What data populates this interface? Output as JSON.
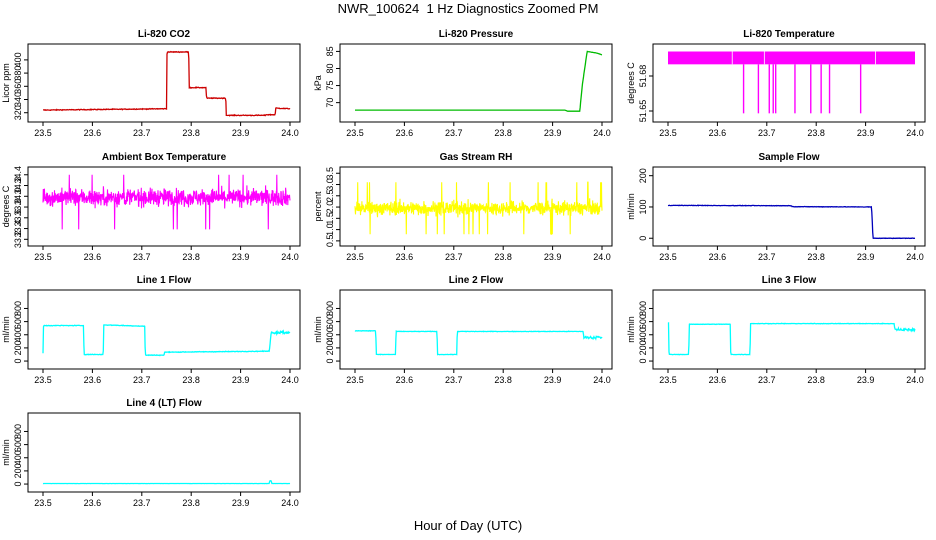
{
  "figure": {
    "title": "NWR_100624  1 Hz Diagnostics Zoomed PM",
    "xlabel": "Hour of Day (UTC)"
  },
  "chart_data": [
    {
      "type": "line",
      "title": "Li-820 CO2",
      "ylabel": "Licor ppm",
      "color": "#cc0000",
      "x_ticks": [
        "23.5",
        "23.6",
        "23.7",
        "23.8",
        "23.9",
        "24.0"
      ],
      "y_ticks": [
        "320",
        "340",
        "360",
        "380",
        "400"
      ],
      "xlim": [
        23.5,
        24.0
      ],
      "ylim": [
        312,
        418
      ],
      "series": [
        {
          "x": [
            23.5,
            23.75,
            23.751,
            23.795,
            23.796,
            23.83,
            23.831,
            23.87,
            23.871,
            23.95,
            23.951,
            23.97,
            23.971,
            24.0
          ],
          "y": [
            324,
            326,
            412,
            412,
            358,
            358,
            342,
            342,
            316,
            316,
            317,
            317,
            327,
            326
          ],
          "noise": 1
        }
      ]
    },
    {
      "type": "line",
      "title": "Li-820 Pressure",
      "ylabel": "kPa",
      "color": "#00bb00",
      "x_ticks": [
        "23.5",
        "23.6",
        "23.7",
        "23.8",
        "23.9",
        "24.0"
      ],
      "y_ticks": [
        "70",
        "75",
        "80",
        "85"
      ],
      "xlim": [
        23.5,
        24.0
      ],
      "ylim": [
        65.5,
        86
      ],
      "series": [
        {
          "x": [
            23.5,
            23.925,
            23.93,
            23.955,
            23.96,
            23.97,
            23.99,
            24.0
          ],
          "y": [
            67.8,
            67.8,
            67.5,
            67.5,
            75,
            85,
            84.5,
            84
          ],
          "noise": 0
        }
      ]
    },
    {
      "type": "line",
      "title": "Li-820 Temperature",
      "ylabel": "degrees C",
      "color": "#ff00ff",
      "x_ticks": [
        "23.5",
        "23.6",
        "23.7",
        "23.8",
        "23.9",
        "24.0"
      ],
      "y_ticks": [
        "51.65",
        "51.68"
      ],
      "xlim": [
        23.5,
        24.0
      ],
      "ylim": [
        51.644,
        51.704
      ],
      "band": {
        "low": 51.69,
        "high": 51.701
      },
      "spikes_x": [
        23.653,
        23.683,
        23.705,
        23.713,
        23.718,
        23.757,
        23.789,
        23.81,
        23.827,
        23.89
      ],
      "spike_low": 51.648
    },
    {
      "type": "line",
      "title": "Ambient Box Temperature",
      "ylabel": "degrees C",
      "color": "#ff00ff",
      "x_ticks": [
        "23.5",
        "23.6",
        "23.7",
        "23.8",
        "23.9",
        "24.0"
      ],
      "y_ticks": [
        "33.2",
        "33.4",
        "33.6",
        "33.8",
        "34.0",
        "34.2",
        "34.4"
      ],
      "xlim": [
        23.5,
        24.0
      ],
      "ylim": [
        33.15,
        34.47
      ],
      "noise_series": {
        "mean": 33.98,
        "spread": 0.17,
        "min": 33.2,
        "max": 34.4
      }
    },
    {
      "type": "line",
      "title": "Gas Stream RH",
      "ylabel": "percent",
      "color": "#ffff00",
      "x_ticks": [
        "23.5",
        "23.6",
        "23.7",
        "23.8",
        "23.9",
        "24.0"
      ],
      "y_ticks": [
        "0.5",
        "1.0",
        "1.5",
        "2.0",
        "2.5",
        "3.0",
        "3.5"
      ],
      "xlim": [
        23.5,
        24.0
      ],
      "ylim": [
        0.45,
        3.6
      ],
      "noise_series": {
        "mean": 1.95,
        "spread": 0.33,
        "min": 0.5,
        "max": 3.3
      }
    },
    {
      "type": "line",
      "title": "Sample Flow",
      "ylabel": "ml/min",
      "color": "#0000bb",
      "x_ticks": [
        "23.5",
        "23.6",
        "23.7",
        "23.8",
        "23.9",
        "24.0"
      ],
      "y_ticks": [
        "0",
        "100",
        "200"
      ],
      "xlim": [
        23.5,
        24.0
      ],
      "ylim": [
        -12,
        215
      ],
      "series": [
        {
          "x": [
            23.5,
            23.75,
            23.751,
            23.912,
            23.915,
            24.0
          ],
          "y": [
            105,
            104,
            101,
            100,
            0,
            0
          ],
          "noise": 1.2
        }
      ]
    },
    {
      "type": "line",
      "title": "Line 1 Flow",
      "ylabel": "ml/min",
      "color": "#00ffff",
      "x_ticks": [
        "23.5",
        "23.6",
        "23.7",
        "23.8",
        "23.9",
        "24.0"
      ],
      "y_ticks": [
        "0",
        "200",
        "400",
        "600",
        "800"
      ],
      "xlim": [
        23.5,
        24.0
      ],
      "ylim": [
        -60,
        1020
      ],
      "series": [
        {
          "x": [
            23.5,
            23.501,
            23.582,
            23.583,
            23.622,
            23.623,
            23.706,
            23.707,
            23.745,
            23.746,
            23.958,
            23.962,
            24.0
          ],
          "y": [
            120,
            540,
            540,
            100,
            100,
            550,
            530,
            90,
            90,
            135,
            150,
            440,
            430
          ],
          "noise": 8,
          "thick_from_x": 23.962,
          "thick_spread": 40
        }
      ]
    },
    {
      "type": "line",
      "title": "Line 2 Flow",
      "ylabel": "ml/min",
      "color": "#00ffff",
      "x_ticks": [
        "23.5",
        "23.6",
        "23.7",
        "23.8",
        "23.9",
        "24.0"
      ],
      "y_ticks": [
        "0",
        "200",
        "400",
        "600",
        "800"
      ],
      "xlim": [
        23.5,
        24.0
      ],
      "ylim": [
        -60,
        1020
      ],
      "series": [
        {
          "x": [
            23.5,
            23.542,
            23.543,
            23.582,
            23.583,
            23.666,
            23.667,
            23.706,
            23.707,
            23.962,
            23.963,
            24.0
          ],
          "y": [
            460,
            460,
            100,
            100,
            450,
            450,
            100,
            100,
            450,
            450,
            360,
            360
          ],
          "noise": 6,
          "thick_from_x": 23.963,
          "thick_spread": 35
        }
      ]
    },
    {
      "type": "line",
      "title": "Line 3 Flow",
      "ylabel": "ml/min",
      "color": "#00ffff",
      "x_ticks": [
        "23.5",
        "23.6",
        "23.7",
        "23.8",
        "23.9",
        "24.0"
      ],
      "y_ticks": [
        "0",
        "200",
        "400",
        "600",
        "800"
      ],
      "xlim": [
        23.5,
        24.0
      ],
      "ylim": [
        -60,
        1020
      ],
      "series": [
        {
          "x": [
            23.5,
            23.501,
            23.502,
            23.542,
            23.543,
            23.626,
            23.627,
            23.666,
            23.667,
            23.958,
            23.959,
            24.0
          ],
          "y": [
            580,
            580,
            100,
            100,
            560,
            560,
            100,
            100,
            570,
            570,
            480,
            480
          ],
          "noise": 6,
          "thick_from_x": 23.959,
          "thick_spread": 35
        }
      ]
    },
    {
      "type": "line",
      "title": "Line 4 (LT) Flow",
      "ylabel": "ml/min",
      "color": "#00ffff",
      "x_ticks": [
        "23.5",
        "23.6",
        "23.7",
        "23.8",
        "23.9",
        "24.0"
      ],
      "y_ticks": [
        "0",
        "200",
        "400",
        "600",
        "800"
      ],
      "xlim": [
        23.5,
        24.0
      ],
      "ylim": [
        -60,
        1020
      ],
      "series": [
        {
          "x": [
            23.5,
            23.958,
            23.959,
            23.962,
            23.963,
            24.0
          ],
          "y": [
            8,
            8,
            50,
            50,
            8,
            8
          ],
          "noise": 1.5
        }
      ]
    }
  ]
}
